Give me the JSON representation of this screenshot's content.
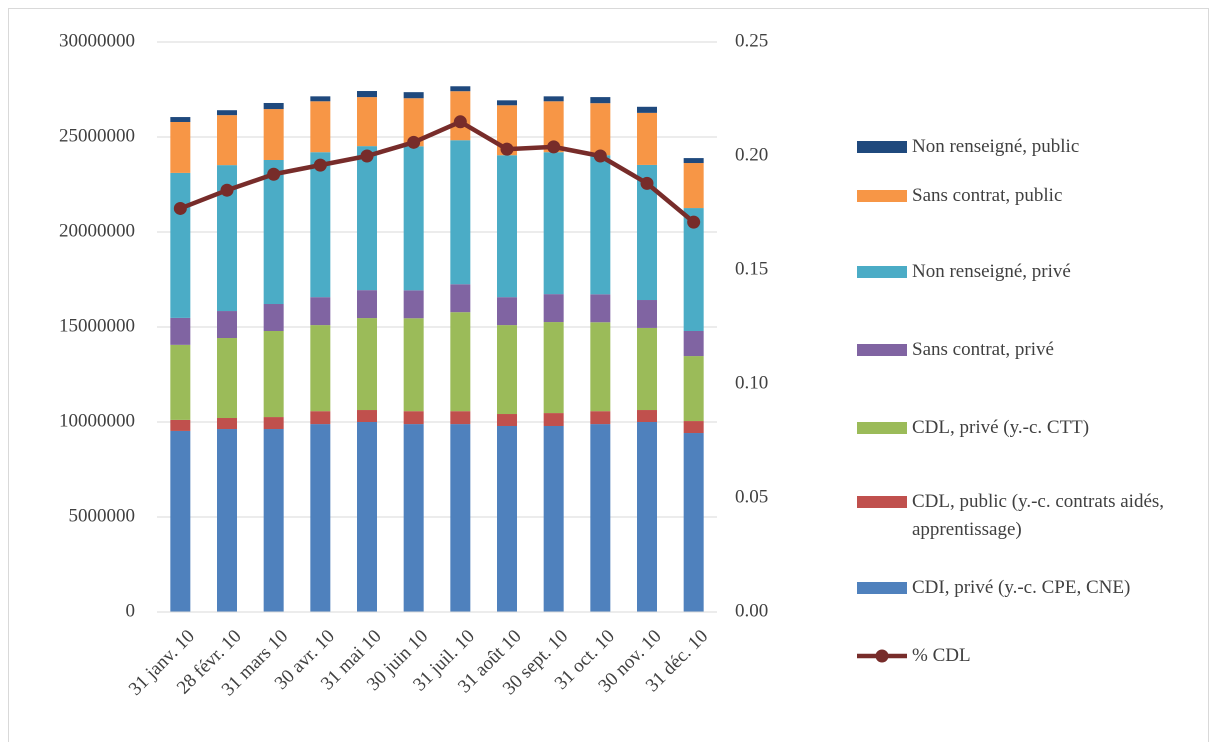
{
  "chart_data": {
    "type": "stacked-bar-line",
    "categories": [
      "31 janv. 10",
      "28 févr. 10",
      "31 mars 10",
      "30 avr. 10",
      "31 mai 10",
      "30 juin 10",
      "31 juil. 10",
      "31 août 10",
      "30 sept. 10",
      "31 oct. 10",
      "30 nov. 10",
      "31 déc. 10"
    ],
    "series": [
      {
        "name": "CDI, privé (y.-c. CPE, CNE)",
        "color": "#4f81bd",
        "values": [
          9530000,
          9630000,
          9630000,
          9890000,
          10000000,
          9890000,
          9890000,
          9790000,
          9790000,
          9890000,
          10000000,
          9420000
        ]
      },
      {
        "name": "CDL, public (y.-c. contrats aidés, apprentissage)",
        "color": "#c0504d",
        "values": [
          580000,
          580000,
          630000,
          680000,
          630000,
          680000,
          680000,
          630000,
          680000,
          680000,
          630000,
          630000
        ]
      },
      {
        "name": "CDL, privé (y.-c. CTT)",
        "color": "#9bbb59",
        "values": [
          3950000,
          4210000,
          4530000,
          4530000,
          4840000,
          4890000,
          5210000,
          4680000,
          4790000,
          4680000,
          4320000,
          3420000
        ]
      },
      {
        "name": "Sans contrat, privé",
        "color": "#8064a2",
        "values": [
          1420000,
          1420000,
          1420000,
          1470000,
          1470000,
          1470000,
          1470000,
          1470000,
          1470000,
          1470000,
          1470000,
          1320000
        ]
      },
      {
        "name": "Non renseigné, privé",
        "color": "#4bacc6",
        "values": [
          7630000,
          7680000,
          7580000,
          7630000,
          7580000,
          7580000,
          7580000,
          7470000,
          7470000,
          7320000,
          7110000,
          6470000
        ]
      },
      {
        "name": "Sans contrat, public",
        "color": "#f79646",
        "values": [
          2680000,
          2630000,
          2680000,
          2680000,
          2580000,
          2530000,
          2580000,
          2630000,
          2680000,
          2740000,
          2740000,
          2370000
        ]
      },
      {
        "name": "Non renseigné, public",
        "color": "#1f497d",
        "values": [
          260000,
          260000,
          320000,
          260000,
          320000,
          320000,
          260000,
          260000,
          260000,
          320000,
          320000,
          260000
        ]
      },
      {
        "name": "% CDL",
        "color": "#772c2a",
        "axis": "y2",
        "values": [
          0.177,
          0.185,
          0.192,
          0.196,
          0.2,
          0.206,
          0.215,
          0.203,
          0.204,
          0.2,
          0.188,
          0.171
        ]
      }
    ],
    "ylim": [
      0,
      30000000
    ],
    "yticks": [
      0,
      5000000,
      10000000,
      15000000,
      20000000,
      25000000,
      30000000
    ],
    "y2lim": [
      0,
      0.25
    ],
    "y2ticks": [
      {
        "value": 0,
        "label": "0.00"
      },
      0.05,
      {
        "value": 0.1,
        "label": "0.10"
      },
      0.15,
      {
        "value": 0.2,
        "label": "0.20"
      },
      0.25
    ],
    "grid": true,
    "legend": "right"
  }
}
